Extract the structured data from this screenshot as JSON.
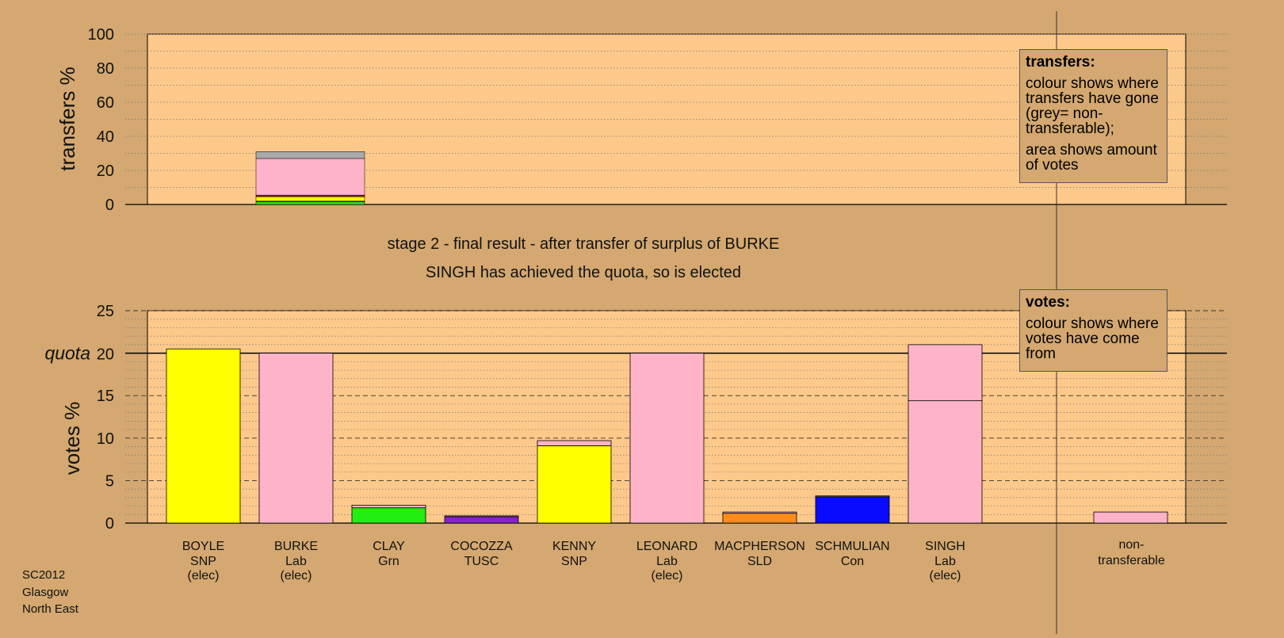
{
  "colors": {
    "background": "#d4a870",
    "plot_bg": "#fdc98a",
    "grid": "#777777",
    "axis": "#000000",
    "SNP": "#ffff00",
    "Lab": "#ffb3c8",
    "Grn": "#22ee11",
    "TUSC": "#8822cc",
    "SLD": "#ff8c1a",
    "Con": "#0a0aff",
    "non_transferable": "#aaaaaa"
  },
  "header": {
    "stage_text": "stage 2 - final result - after transfer of surplus of BURKE",
    "result_text": "SINGH has achieved the quota, so is elected"
  },
  "legend_transfers": {
    "title": "transfers:",
    "line1": "colour shows where transfers have gone (grey= non-transferable);",
    "line2": "area shows amount of votes"
  },
  "legend_votes": {
    "title": "votes:",
    "line1": "colour shows where votes have come from"
  },
  "footer": {
    "line1": "SC2012",
    "line2": "Glasgow",
    "line3": "North East"
  },
  "chart_data": [
    {
      "type": "bar",
      "ylabel": "transfers %",
      "ylim": [
        0,
        100
      ],
      "yticks": [
        0,
        20,
        40,
        60,
        80,
        100
      ],
      "grid": true,
      "legend": "top-right",
      "stacked_bars": [
        {
          "category_index": 1,
          "segments": [
            {
              "party": "Grn",
              "value": 1.5
            },
            {
              "party": "TUSC",
              "value": 0.5
            },
            {
              "party": "SNP",
              "value": 2.5
            },
            {
              "party": "SLD",
              "value": 0.5
            },
            {
              "party": "Con",
              "value": 0.5
            },
            {
              "party": "Lab",
              "value": 21.5
            },
            {
              "party": "non_transferable",
              "value": 4.0
            }
          ]
        }
      ]
    },
    {
      "type": "bar",
      "ylabel": "votes %",
      "ylim": [
        0,
        25
      ],
      "yticks": [
        0,
        5,
        10,
        15,
        20,
        25
      ],
      "quota": 20,
      "quota_label": "quota",
      "grid": true,
      "legend": "top-right",
      "categories": [
        {
          "name": "BOYLE",
          "party": "SNP",
          "status": "(elec)"
        },
        {
          "name": "BURKE",
          "party": "Lab",
          "status": "(elec)"
        },
        {
          "name": "CLAY",
          "party": "Grn",
          "status": ""
        },
        {
          "name": "COCOZZA",
          "party": "TUSC",
          "status": ""
        },
        {
          "name": "KENNY",
          "party": "SNP",
          "status": ""
        },
        {
          "name": "LEONARD",
          "party": "Lab",
          "status": "(elec)"
        },
        {
          "name": "MACPHERSON",
          "party": "SLD",
          "status": ""
        },
        {
          "name": "SCHMULIAN",
          "party": "Con",
          "status": ""
        },
        {
          "name": "SINGH",
          "party": "Lab",
          "status": "(elec)"
        }
      ],
      "series": [
        {
          "candidate": "BOYLE",
          "segments": [
            {
              "party": "SNP",
              "value": 20.5
            }
          ]
        },
        {
          "candidate": "BURKE",
          "segments": [
            {
              "party": "Lab",
              "value": 20.0
            }
          ]
        },
        {
          "candidate": "CLAY",
          "segments": [
            {
              "party": "Grn",
              "value": 1.8
            },
            {
              "party": "Lab",
              "value": 0.3
            }
          ]
        },
        {
          "candidate": "COCOZZA",
          "segments": [
            {
              "party": "TUSC",
              "value": 0.75
            },
            {
              "party": "Lab",
              "value": 0.1
            }
          ]
        },
        {
          "candidate": "KENNY",
          "segments": [
            {
              "party": "SNP",
              "value": 9.1
            },
            {
              "party": "Lab",
              "value": 0.6
            }
          ]
        },
        {
          "candidate": "LEONARD",
          "segments": [
            {
              "party": "Lab",
              "value": 20.0
            }
          ]
        },
        {
          "candidate": "MACPHERSON",
          "segments": [
            {
              "party": "SLD",
              "value": 1.15
            },
            {
              "party": "Lab",
              "value": 0.15
            }
          ]
        },
        {
          "candidate": "SCHMULIAN",
          "segments": [
            {
              "party": "Con",
              "value": 3.1
            },
            {
              "party": "Lab",
              "value": 0.1
            }
          ]
        },
        {
          "candidate": "SINGH",
          "segments": [
            {
              "party": "Lab",
              "value": 14.4
            },
            {
              "party": "Lab",
              "value": 6.6
            }
          ]
        }
      ],
      "non_transferable": {
        "label_line1": "non-",
        "label_line2": "transferable",
        "value": 1.3
      }
    }
  ]
}
